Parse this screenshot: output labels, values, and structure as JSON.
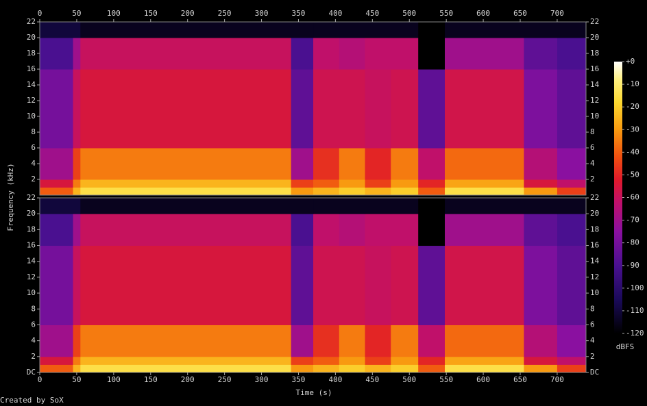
{
  "chart_data": {
    "type": "heatmap",
    "xlabel": "Time (s)",
    "ylabel": "Frequency (kHz)",
    "credit": "Created by SoX",
    "xlim": [
      0,
      739
    ],
    "xticks": [
      0,
      50,
      100,
      150,
      200,
      250,
      300,
      350,
      400,
      450,
      500,
      550,
      600,
      650,
      700
    ],
    "x_edges": [
      0,
      45,
      55,
      340,
      370,
      405,
      440,
      475,
      512,
      548,
      655,
      700,
      739
    ],
    "colorbar": {
      "label": "dBFS",
      "lim": [
        -120,
        0
      ],
      "ticks": [
        {
          "value": 0,
          "label": "+0"
        },
        -10,
        -20,
        -30,
        -40,
        -50,
        -60,
        -70,
        -80,
        -90,
        -100,
        -110,
        -120
      ]
    },
    "colormap": [
      [
        -120,
        "#000000"
      ],
      [
        -105,
        "#1a0a5a"
      ],
      [
        -90,
        "#4a1090"
      ],
      [
        -75,
        "#8a10a0"
      ],
      [
        -62,
        "#c0106a"
      ],
      [
        -52,
        "#e01a2a"
      ],
      [
        -42,
        "#f05010"
      ],
      [
        -30,
        "#f89a10"
      ],
      [
        -18,
        "#fcd830"
      ],
      [
        -8,
        "#fff080"
      ],
      [
        0,
        "#ffffff"
      ]
    ],
    "channels": [
      {
        "ylim": [
          0,
          22
        ],
        "yticks": [
          2,
          4,
          6,
          8,
          10,
          12,
          14,
          16,
          18,
          20,
          22
        ],
        "y_edges": [
          0,
          1,
          2,
          6,
          16,
          20,
          22
        ],
        "z": [
          [
            -40,
            -25,
            -15,
            -30,
            -25,
            -20,
            -25,
            -20,
            -40,
            -15,
            -30,
            -45
          ],
          [
            -55,
            -35,
            -25,
            -45,
            -40,
            -30,
            -45,
            -30,
            -50,
            -28,
            -55,
            -62
          ],
          [
            -70,
            -45,
            -35,
            -70,
            -48,
            -35,
            -50,
            -35,
            -62,
            -38,
            -65,
            -75
          ],
          [
            -80,
            -60,
            -55,
            -85,
            -58,
            -58,
            -60,
            -58,
            -85,
            -57,
            -78,
            -85
          ],
          [
            -90,
            -70,
            -60,
            -90,
            -62,
            -65,
            -62,
            -62,
            -120,
            -70,
            -85,
            -90
          ],
          [
            -110,
            -110,
            -115,
            -115,
            -115,
            -115,
            -115,
            -115,
            -120,
            -115,
            -115,
            -115
          ]
        ]
      },
      {
        "ylim": [
          0,
          22
        ],
        "yticks": [
          {
            "value": 0,
            "label": "DC"
          },
          2,
          4,
          6,
          8,
          10,
          12,
          14,
          16,
          18,
          20,
          22
        ],
        "y_edges": [
          0,
          1,
          2,
          6,
          16,
          20,
          22
        ],
        "z": [
          [
            -40,
            -25,
            -15,
            -30,
            -25,
            -20,
            -25,
            -20,
            -40,
            -15,
            -30,
            -45
          ],
          [
            -55,
            -35,
            -25,
            -45,
            -40,
            -30,
            -45,
            -30,
            -50,
            -28,
            -55,
            -62
          ],
          [
            -70,
            -45,
            -35,
            -70,
            -48,
            -35,
            -50,
            -35,
            -62,
            -38,
            -65,
            -75
          ],
          [
            -80,
            -60,
            -55,
            -85,
            -58,
            -58,
            -60,
            -58,
            -85,
            -57,
            -78,
            -85
          ],
          [
            -90,
            -70,
            -60,
            -90,
            -62,
            -65,
            -62,
            -62,
            -120,
            -70,
            -85,
            -90
          ],
          [
            -110,
            -110,
            -115,
            -115,
            -115,
            -115,
            -115,
            -115,
            -120,
            -115,
            -115,
            -115
          ]
        ]
      }
    ]
  }
}
